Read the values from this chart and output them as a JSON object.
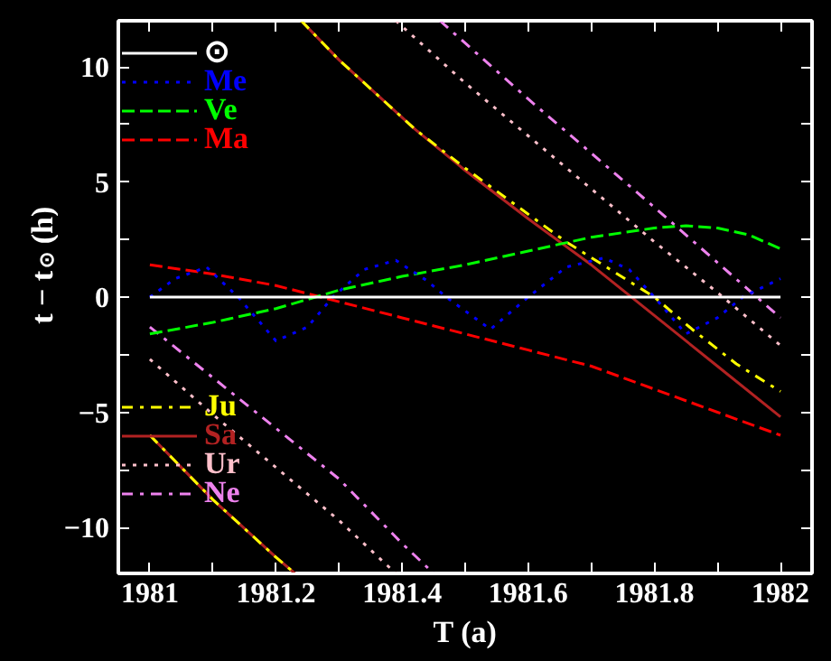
{
  "chart_data": {
    "type": "line",
    "xlabel": "T (a)",
    "ylabel": "t − t$_{⊙}$ (h)",
    "xlim": [
      1980.95,
      1982.05
    ],
    "ylim": [
      -12,
      12
    ],
    "xticks": [
      1981,
      {
        "value": 1981.1,
        "label": null
      },
      1981.2,
      {
        "value": 1981.3,
        "label": null
      },
      1981.4,
      {
        "value": 1981.5,
        "label": null
      },
      1981.6,
      {
        "value": 1981.7,
        "label": null
      },
      1981.8,
      {
        "value": 1981.9,
        "label": null
      },
      1982
    ],
    "yticks": [
      -10,
      {
        "value": -7.5,
        "label": null
      },
      -5,
      {
        "value": -2.5,
        "label": null
      },
      0,
      {
        "value": 2.5,
        "label": null
      },
      5,
      {
        "value": 7.5,
        "label": null
      },
      10
    ],
    "grid": false,
    "legend": "left",
    "marker": "none",
    "series": [
      {
        "name": "⊙",
        "color": "#ffffff",
        "line_style": "solid",
        "x": [
          1981,
          1982
        ],
        "values": [
          0,
          0
        ]
      },
      {
        "name": "Me",
        "color": "#0000ff",
        "line_style": "dotted",
        "x": [
          1981,
          1981.04,
          1981.09,
          1981.14,
          1981.2,
          1981.25,
          1981.29,
          1981.34,
          1981.39,
          1981.44,
          1981.47,
          1981.54,
          1981.6,
          1981.66,
          1981.72,
          1981.76,
          1981.8,
          1981.85,
          1981.9,
          1981.94,
          1982
        ],
        "values": [
          0,
          0.8,
          1.3,
          0,
          -1.9,
          -1.3,
          0,
          1.2,
          1.6,
          0.7,
          0,
          -1.4,
          0,
          1.3,
          1.7,
          1.2,
          0,
          -1.6,
          -0.9,
          0,
          0.8
        ]
      },
      {
        "name": "Ve",
        "color": "#00ff00",
        "line_style": "dashed",
        "x": [
          1981,
          1981.1,
          1981.2,
          1981.3,
          1981.4,
          1981.5,
          1981.6,
          1981.7,
          1981.8,
          1981.85,
          1981.9,
          1981.95,
          1982
        ],
        "values": [
          -1.6,
          -1.1,
          -0.5,
          0.3,
          0.9,
          1.4,
          2.0,
          2.6,
          3.0,
          3.1,
          3.0,
          2.7,
          2.1
        ]
      },
      {
        "name": "Ma",
        "color": "#ff0000",
        "line_style": "dashed",
        "x": [
          1981,
          1981.1,
          1981.2,
          1981.3,
          1981.4,
          1981.5,
          1981.6,
          1981.7,
          1981.8,
          1981.9,
          1982
        ],
        "values": [
          1.4,
          1.0,
          0.5,
          -0.2,
          -0.9,
          -1.6,
          -2.3,
          -3.0,
          -4.0,
          -5.0,
          -6.0
        ]
      },
      {
        "name": "Ju",
        "color": "#ffff00",
        "line_style": "dashdot",
        "x": [
          1981,
          1981.1,
          1981.2,
          1981.23
        ],
        "values": [
          -6.0,
          -8.8,
          -11.3,
          -12
        ]
      },
      {
        "color": "#ffff00",
        "line_style": "dashdot",
        "x": [
          1981.24,
          1981.3,
          1981.42,
          1981.5,
          1981.6,
          1981.66,
          1981.8,
          1981.86,
          1981.93,
          1982
        ],
        "values": [
          12,
          10.3,
          7.3,
          5.6,
          3.6,
          2.4,
          0,
          -1.4,
          -2.9,
          -4.1
        ]
      },
      {
        "name": "Sa",
        "color": "#b22222",
        "line_style": "solid",
        "x": [
          1981,
          1981.1,
          1981.2,
          1981.23
        ],
        "values": [
          -6.0,
          -8.8,
          -11.3,
          -12
        ]
      },
      {
        "color": "#b22222",
        "line_style": "solid",
        "x": [
          1981.24,
          1981.3,
          1981.42,
          1981.5,
          1981.6,
          1981.7,
          1981.8,
          1981.9,
          1982
        ],
        "values": [
          12,
          10.3,
          7.3,
          5.5,
          3.4,
          1.4,
          -0.8,
          -3.0,
          -5.2
        ]
      },
      {
        "name": "Ur",
        "color": "#ffc0cb",
        "line_style": "dotted",
        "x": [
          1981,
          1981.1,
          1981.2,
          1981.3,
          1981.39
        ],
        "values": [
          -2.7,
          -5.1,
          -7.4,
          -9.7,
          -12
        ]
      },
      {
        "color": "#ffc0cb",
        "line_style": "dotted",
        "x": [
          1981.39,
          1981.5,
          1981.6,
          1981.7,
          1981.8,
          1981.9,
          1982
        ],
        "values": [
          12,
          9.3,
          7.0,
          4.7,
          2.4,
          0.2,
          -2.1
        ]
      },
      {
        "name": "Ne",
        "color": "#ee82ee",
        "line_style": "dashdot",
        "x": [
          1981,
          1981.1,
          1981.2,
          1981.3,
          1981.4,
          1981.45
        ],
        "values": [
          -1.3,
          -3.5,
          -5.7,
          -7.9,
          -10.7,
          -12
        ]
      },
      {
        "color": "#ee82ee",
        "line_style": "dashdot",
        "x": [
          1981.46,
          1981.6,
          1981.8,
          1981.95,
          1982
        ],
        "values": [
          12,
          8.6,
          3.9,
          0.3,
          -0.9
        ]
      }
    ]
  }
}
